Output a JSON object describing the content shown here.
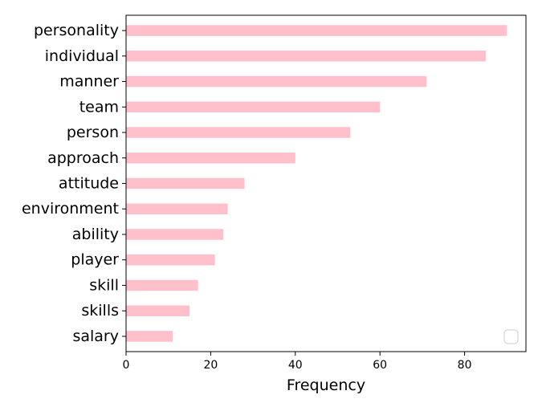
{
  "chart_data": {
    "type": "bar",
    "orientation": "horizontal",
    "categories": [
      "personality",
      "individual",
      "manner",
      "team",
      "person",
      "approach",
      "attitude",
      "environment",
      "ability",
      "player",
      "skill",
      "skills",
      "salary"
    ],
    "values": [
      90,
      85,
      71,
      60,
      53,
      40,
      28,
      24,
      23,
      21,
      17,
      15,
      11
    ],
    "xlabel": "Frequency",
    "ylabel": "",
    "xlim": [
      0,
      94.5
    ],
    "xticks": [
      0,
      20,
      40,
      60,
      80
    ],
    "bar_color": "#ffc0cb",
    "grid": false,
    "legend": "lower-right, empty"
  }
}
